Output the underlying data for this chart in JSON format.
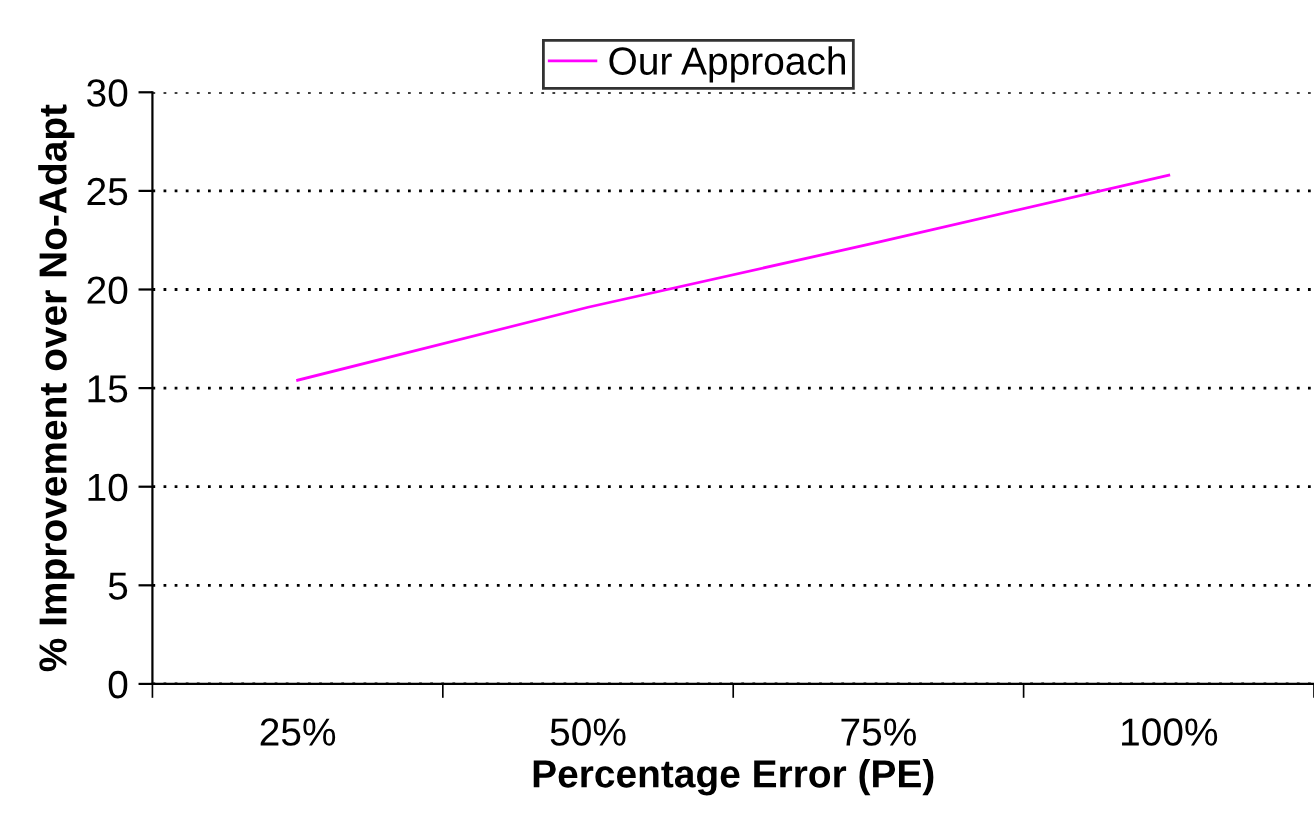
{
  "chart_data": {
    "type": "line",
    "xlabel": "Percentage Error (PE)",
    "ylabel": "% Improvement over No-Adapt",
    "categories": [
      "25%",
      "50%",
      "75%",
      "100%"
    ],
    "series": [
      {
        "name": "Our Approach",
        "color": "#ff00ff",
        "values": [
          15.4,
          19.1,
          22.4,
          25.8
        ]
      }
    ],
    "ylim": [
      0,
      30
    ],
    "yticks": [
      0,
      5,
      10,
      15,
      20,
      25,
      30
    ],
    "grid": "y",
    "legend": "top",
    "marker": "none",
    "line_style": "solid"
  }
}
